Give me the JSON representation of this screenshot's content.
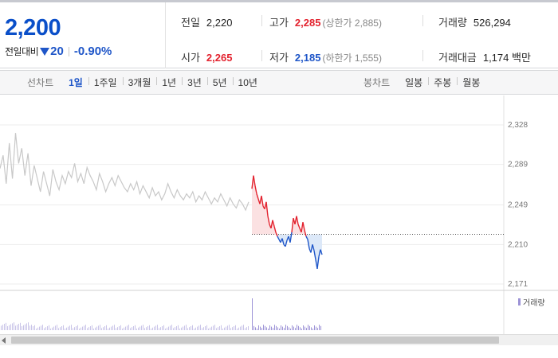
{
  "price": {
    "current": "2,200",
    "change_label": "전일대비",
    "change_amount": "20",
    "change_rate": "-0.90%"
  },
  "stats": {
    "prev_close": {
      "label": "전일",
      "value": "2,220"
    },
    "high": {
      "label": "고가",
      "value": "2,285",
      "sub": "(상한가 2,885)"
    },
    "volume": {
      "label": "거래량",
      "value": "526,294"
    },
    "open": {
      "label": "시가",
      "value": "2,265"
    },
    "low": {
      "label": "저가",
      "value": "2,185",
      "sub": "(하한가 1,555)"
    },
    "trade_value": {
      "label": "거래대금",
      "value": "1,174 백만"
    }
  },
  "line_chart_tabs": {
    "title": "선차트",
    "items": [
      "1일",
      "1주일",
      "3개월",
      "1년",
      "3년",
      "5년",
      "10년"
    ],
    "active": "1일"
  },
  "candle_chart_tabs": {
    "title": "봉차트",
    "items": [
      "일봉",
      "주봉",
      "월봉"
    ]
  },
  "volume_legend": "거래량",
  "colors": {
    "up": "#e3232f",
    "down": "#1f56c8",
    "prev_session": "#c8c8c8",
    "volume": "#9c92d6",
    "prev_close_line": "#333333"
  },
  "chart_data": {
    "type": "line",
    "y_ticks": [
      "2,328",
      "2,289",
      "2,249",
      "2,210",
      "2,171"
    ],
    "ylim": [
      2171,
      2328
    ],
    "prev_close": 2220,
    "prev_session_values": [
      2285,
      2298,
      2270,
      2310,
      2275,
      2320,
      2290,
      2305,
      2278,
      2300,
      2268,
      2288,
      2275,
      2262,
      2282,
      2270,
      2258,
      2284,
      2272,
      2264,
      2278,
      2270,
      2282,
      2276,
      2290,
      2272,
      2280,
      2270,
      2286,
      2278,
      2272,
      2264,
      2280,
      2272,
      2262,
      2270,
      2276,
      2268,
      2278,
      2272,
      2266,
      2262,
      2270,
      2264,
      2272,
      2260,
      2268,
      2262,
      2256,
      2266,
      2258,
      2262,
      2254,
      2260,
      2270,
      2262,
      2256,
      2264,
      2258,
      2254,
      2260,
      2256,
      2262,
      2252,
      2258,
      2254,
      2262,
      2256,
      2250,
      2256,
      2252,
      2260,
      2254,
      2248,
      2256,
      2250,
      2246,
      2254,
      2250,
      2244,
      2252
    ],
    "today_values": [
      2265,
      2278,
      2268,
      2260,
      2255,
      2250,
      2258,
      2248,
      2245,
      2252,
      2238,
      2230,
      2226,
      2234,
      2228,
      2222,
      2218,
      2215,
      2212,
      2216,
      2210,
      2208,
      2214,
      2218,
      2212,
      2222,
      2236,
      2230,
      2238,
      2230,
      2226,
      2222,
      2232,
      2224,
      2218,
      2215,
      2206,
      2202,
      2210,
      2204,
      2195,
      2186,
      2198,
      2205,
      2200
    ]
  }
}
